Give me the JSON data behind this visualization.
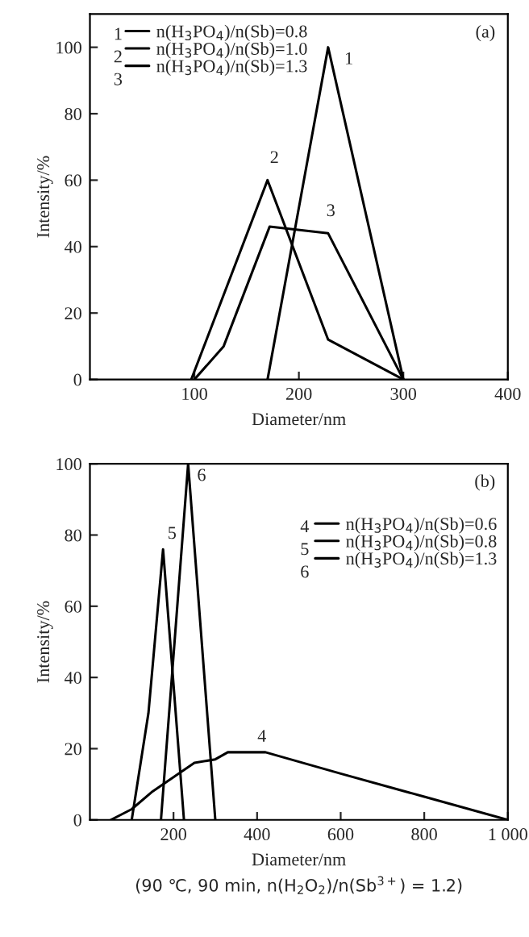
{
  "chart_data": [
    {
      "type": "line",
      "xlabel": "Diameter/nm",
      "ylabel": "Intensity/%",
      "xlim": [
        0,
        400
      ],
      "xticks": [
        100,
        200,
        300,
        400
      ],
      "ylim": [
        0,
        110
      ],
      "yticks": [
        0,
        20,
        40,
        60,
        80,
        100
      ],
      "legend": "top left",
      "series": [
        {
          "name": "n(H$_{3}$PO$_{4}$)/n(Sb)=0.8",
          "color": "#000000",
          "x": [
            170,
            228,
            300
          ],
          "values": [
            0,
            100,
            0
          ]
        },
        {
          "name": "n(H$_{3}$PO$_{4}$)/n(Sb)=1.0",
          "color": "#000000",
          "x": [
            97,
            170,
            228,
            300
          ],
          "values": [
            0,
            60,
            12,
            0
          ]
        },
        {
          "name": "n(H$_{3}$PO$_{4}$)/n(Sb)=1.3",
          "color": "#000000",
          "x": [
            100,
            128,
            172,
            228,
            300
          ],
          "values": [
            0,
            10,
            46,
            44,
            0
          ]
        }
      ],
      "annotations": [
        {
          "text": "1",
          "x": 235,
          "y": 100
        },
        {
          "text": "2",
          "x": 168,
          "y": 62
        },
        {
          "text": "3",
          "x": 222,
          "y": 46
        },
        "(a)"
      ]
    },
    {
      "type": "line",
      "xlabel": "Diameter/nm",
      "ylabel": "Intensity/%",
      "xlim": [
        0,
        1000
      ],
      "xticks": [
        200,
        400,
        600,
        800,
        {
          "value": 1000,
          "label": "1 000"
        }
      ],
      "ylim": [
        0,
        100
      ],
      "yticks": [
        0,
        20,
        40,
        60,
        80,
        100
      ],
      "legend": "top right",
      "series": [
        {
          "name": "n(H$_{3}$PO$_{4}$)/n(Sb)=0.6",
          "color": "#000000",
          "x": [
            50,
            100,
            150,
            200,
            250,
            300,
            330,
            420,
            600,
            800,
            1000
          ],
          "values": [
            0,
            3,
            8,
            12,
            16,
            17,
            19,
            19,
            13,
            6.5,
            0
          ]
        },
        {
          "name": "n(H$_{3}$PO$_{4}$)/n(Sb)=0.8",
          "color": "#000000",
          "x": [
            100,
            140,
            175,
            225
          ],
          "values": [
            0,
            30,
            76,
            0
          ]
        },
        {
          "name": "n(H$_{3}$PO$_{4}$)/n(Sb)=1.3",
          "color": "#000000",
          "x": [
            170,
            235,
            300
          ],
          "values": [
            0,
            100,
            0
          ]
        }
      ],
      "annotations": [
        {
          "text": "4",
          "x": 390,
          "y": 19
        },
        {
          "text": "5",
          "x": 175,
          "y": 76
        },
        {
          "text": "6",
          "x": 235,
          "y": 100
        },
        "(b)",
        "(90 ℃, 90 min, n(H$_{2}$O$_{2}$)/n(Sb$^{3+}$) = 1.2)"
      ]
    }
  ]
}
